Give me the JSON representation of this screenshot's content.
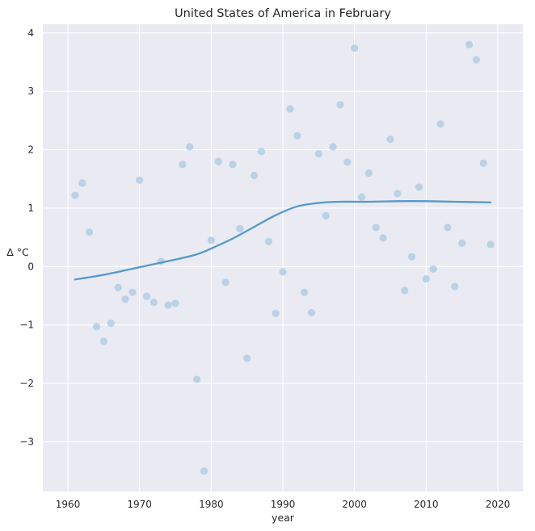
{
  "chart_data": {
    "type": "scatter",
    "title": "United States of America in February",
    "xlabel": "year",
    "ylabel": "Δ °C",
    "xlim": [
      1956.5,
      2023.5
    ],
    "ylim": [
      -3.85,
      4.15
    ],
    "xticks": [
      1960,
      1970,
      1980,
      1990,
      2000,
      2010,
      2020
    ],
    "yticks": [
      -3,
      -2,
      -1,
      0,
      1,
      2,
      3,
      4
    ],
    "grid": true,
    "colors": {
      "background": "#eaeaf2",
      "grid": "#ffffff",
      "points": "#a9c8e2",
      "trend": "#5599c8"
    },
    "series": [
      {
        "kind": "points",
        "x": [
          1961,
          1962,
          1963,
          1964,
          1965,
          1966,
          1967,
          1968,
          1969,
          1970,
          1971,
          1972,
          1973,
          1974,
          1975,
          1976,
          1977,
          1978,
          1979,
          1980,
          1981,
          1982,
          1983,
          1984,
          1985,
          1986,
          1987,
          1988,
          1989,
          1990,
          1991,
          1992,
          1993,
          1994,
          1995,
          1996,
          1997,
          1998,
          1999,
          2000,
          2001,
          2002,
          2003,
          2004,
          2005,
          2006,
          2007,
          2008,
          2009,
          2010,
          2011,
          2012,
          2013,
          2014,
          2015,
          2016,
          2017,
          2018,
          2019
        ],
        "y": [
          1.22,
          1.43,
          0.59,
          -1.03,
          -1.28,
          -0.97,
          -0.36,
          -0.56,
          -0.44,
          1.48,
          -0.51,
          -0.61,
          0.09,
          -0.66,
          -0.63,
          1.75,
          2.05,
          -1.93,
          -3.5,
          0.45,
          1.8,
          -0.27,
          1.75,
          0.65,
          -1.57,
          1.56,
          1.97,
          0.43,
          -0.8,
          -0.09,
          2.7,
          2.24,
          -0.44,
          -0.79,
          1.93,
          0.87,
          2.05,
          2.77,
          1.79,
          3.74,
          1.19,
          1.6,
          0.67,
          0.49,
          2.18,
          1.25,
          -0.41,
          0.17,
          1.36,
          -0.21,
          -0.04,
          2.44,
          0.67,
          -0.34,
          0.4,
          3.8,
          3.54,
          1.77,
          0.38
        ]
      },
      {
        "kind": "trend",
        "x": [
          1961,
          1965,
          1970,
          1975,
          1978,
          1980,
          1983,
          1986,
          1989,
          1992,
          1995,
          1998,
          2002,
          2006,
          2010,
          2014,
          2019
        ],
        "y": [
          -0.22,
          -0.14,
          -0.01,
          0.12,
          0.21,
          0.31,
          0.48,
          0.68,
          0.88,
          1.03,
          1.09,
          1.11,
          1.11,
          1.12,
          1.12,
          1.11,
          1.1
        ]
      }
    ]
  }
}
